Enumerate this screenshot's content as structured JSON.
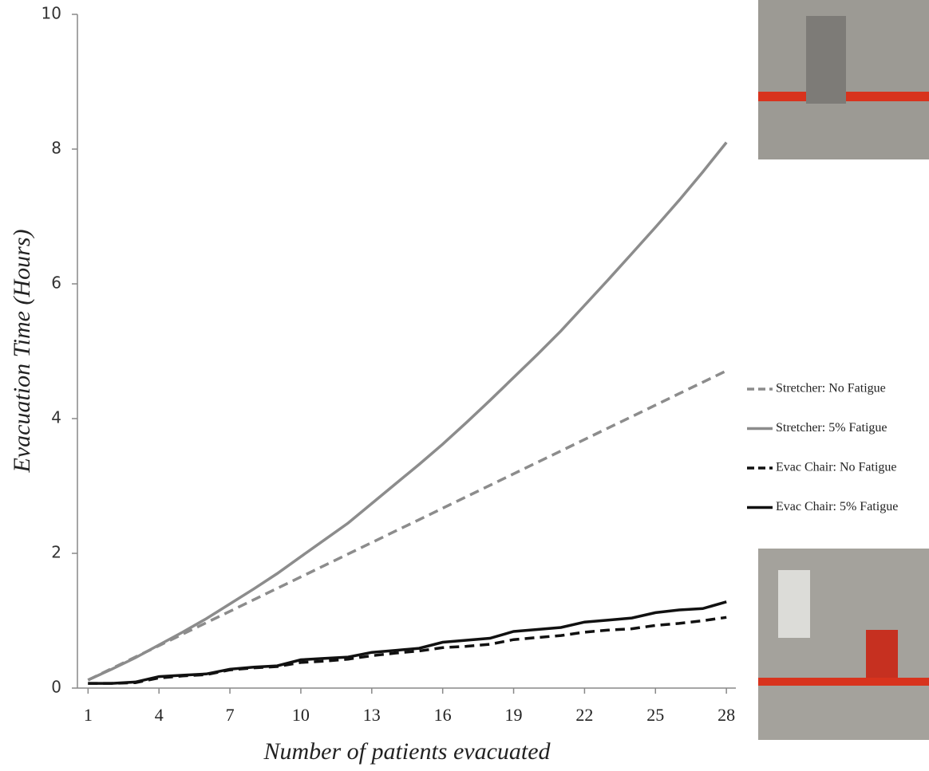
{
  "chart_data": {
    "type": "line",
    "x_label": "Number of patients evacuated",
    "y_label": "Evacuation Time (Hours)",
    "x": [
      1,
      2,
      3,
      4,
      5,
      6,
      7,
      8,
      9,
      10,
      11,
      12,
      13,
      14,
      15,
      16,
      17,
      18,
      19,
      20,
      21,
      22,
      23,
      24,
      25,
      26,
      27,
      28
    ],
    "xlim": [
      0.55,
      28.4
    ],
    "xticks": [
      1,
      4,
      7,
      10,
      13,
      16,
      19,
      22,
      25,
      28
    ],
    "ylim": [
      0,
      10
    ],
    "yticks": [
      0,
      2,
      4,
      6,
      8,
      10
    ],
    "legend": "right",
    "series": [
      {
        "name": "Stretcher: No Fatigue",
        "color": "#8c8c8c",
        "dashed": true,
        "values": [
          0.12,
          0.29,
          0.46,
          0.63,
          0.8,
          0.97,
          1.14,
          1.31,
          1.48,
          1.65,
          1.82,
          1.99,
          2.16,
          2.33,
          2.5,
          2.67,
          2.84,
          3.01,
          3.18,
          3.35,
          3.52,
          3.69,
          3.86,
          4.03,
          4.2,
          4.37,
          4.54,
          4.71
        ]
      },
      {
        "name": "Stretcher: 5% Fatigue",
        "color": "#8c8c8c",
        "dashed": false,
        "values": [
          0.12,
          0.28,
          0.45,
          0.64,
          0.83,
          1.03,
          1.25,
          1.47,
          1.7,
          1.95,
          2.2,
          2.45,
          2.74,
          3.03,
          3.32,
          3.62,
          3.94,
          4.27,
          4.61,
          4.95,
          5.3,
          5.68,
          6.06,
          6.45,
          6.84,
          7.24,
          7.66,
          8.1
        ]
      },
      {
        "name": "Evac Chair: No Fatigue",
        "color": "#111111",
        "dashed": true,
        "values": [
          0.07,
          0.07,
          0.08,
          0.15,
          0.18,
          0.2,
          0.27,
          0.3,
          0.32,
          0.38,
          0.4,
          0.43,
          0.48,
          0.52,
          0.55,
          0.6,
          0.62,
          0.65,
          0.72,
          0.75,
          0.78,
          0.83,
          0.86,
          0.88,
          0.93,
          0.96,
          1.0,
          1.05
        ]
      },
      {
        "name": "Evac Chair: 5% Fatigue",
        "color": "#111111",
        "dashed": false,
        "values": [
          0.07,
          0.07,
          0.09,
          0.17,
          0.19,
          0.21,
          0.28,
          0.31,
          0.33,
          0.42,
          0.44,
          0.46,
          0.53,
          0.56,
          0.59,
          0.68,
          0.71,
          0.74,
          0.84,
          0.87,
          0.9,
          0.98,
          1.01,
          1.04,
          1.12,
          1.16,
          1.18,
          1.28
        ]
      }
    ]
  }
}
